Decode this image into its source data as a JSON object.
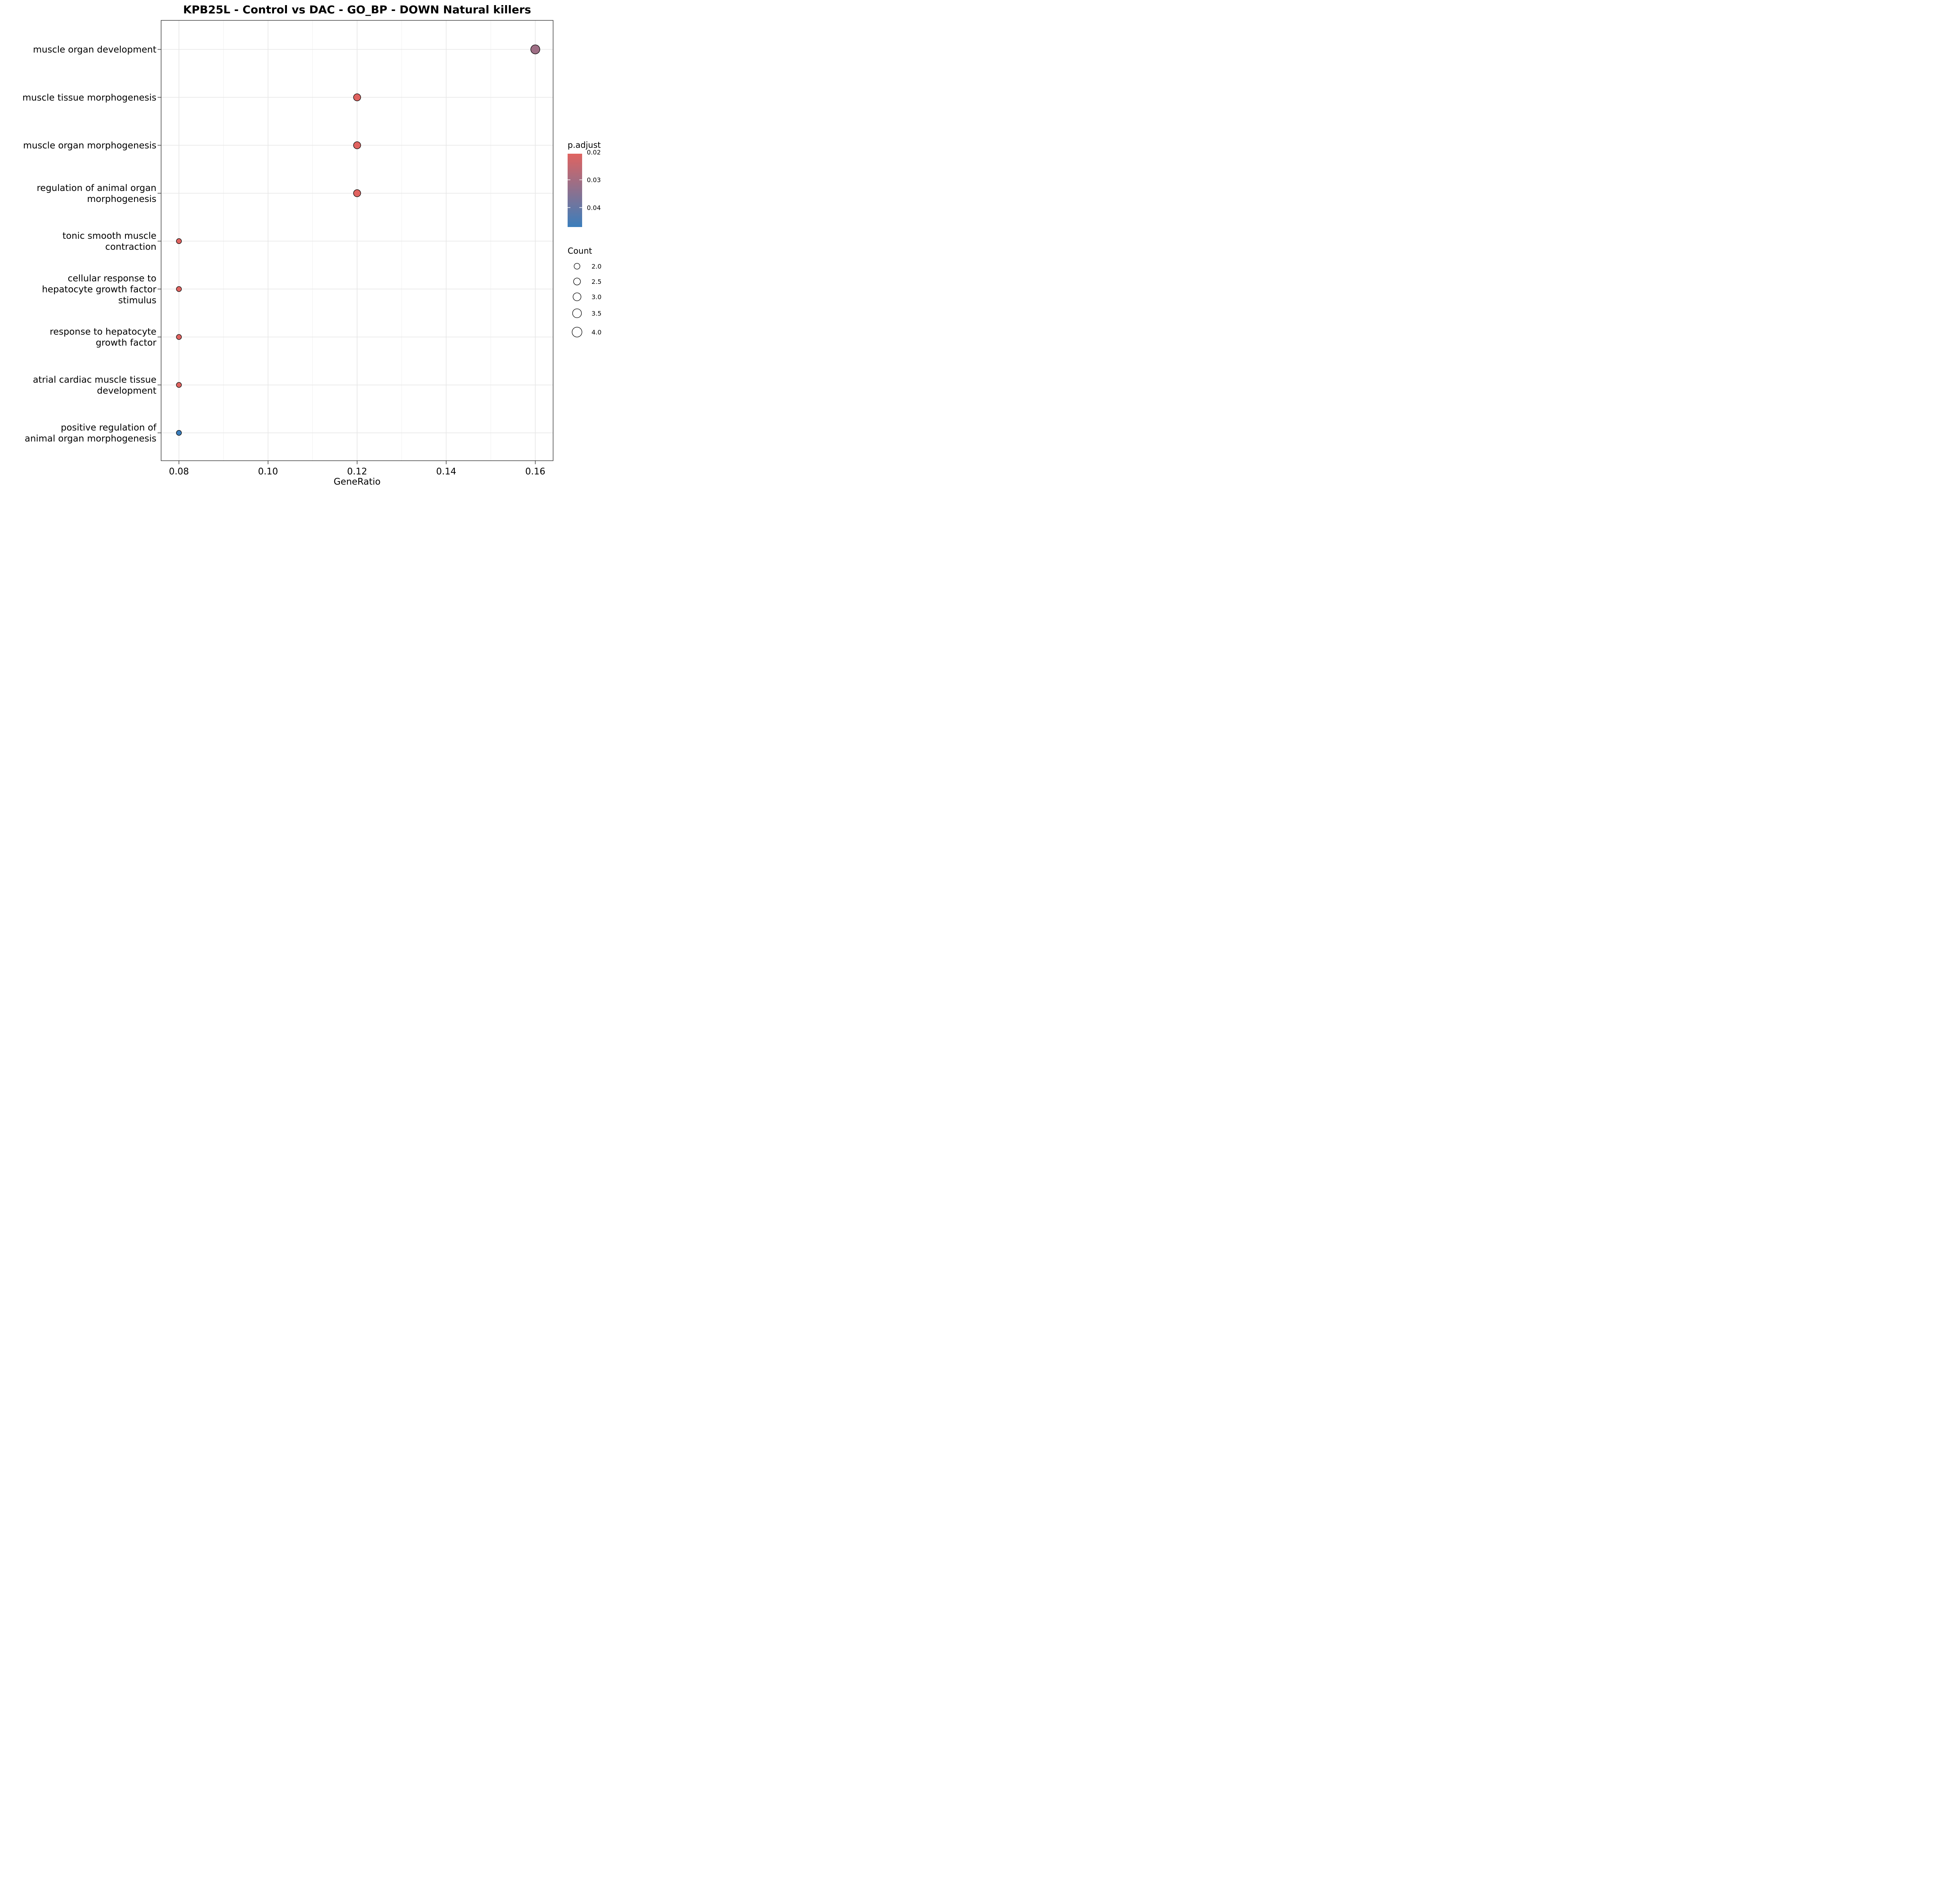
{
  "chart_data": {
    "type": "scatter",
    "title": "KPB25L - Control vs DAC - GO_BP - DOWN Natural killers",
    "xlabel": "GeneRatio",
    "ylabel": "",
    "xlim": [
      0.076,
      0.164
    ],
    "x_ticks": [
      0.08,
      0.1,
      0.12,
      0.14,
      0.16
    ],
    "x_tick_labels": [
      "0.08",
      "0.10",
      "0.12",
      "0.14",
      "0.16"
    ],
    "grid": true,
    "categories": [
      [
        "muscle organ development"
      ],
      [
        "muscle tissue morphogenesis"
      ],
      [
        "muscle organ morphogenesis"
      ],
      [
        "regulation of animal organ",
        "morphogenesis"
      ],
      [
        "tonic smooth muscle",
        "contraction"
      ],
      [
        "cellular response to",
        "hepatocyte growth factor",
        "stimulus"
      ],
      [
        "response to hepatocyte",
        "growth factor"
      ],
      [
        "atrial cardiac muscle tissue",
        "development"
      ],
      [
        "positive regulation of",
        "animal organ morphogenesis"
      ]
    ],
    "points": [
      {
        "x": 0.16,
        "count": 4,
        "p_adjust": 0.0312
      },
      {
        "x": 0.12,
        "count": 3,
        "p_adjust": 0.0206
      },
      {
        "x": 0.12,
        "count": 3,
        "p_adjust": 0.0206
      },
      {
        "x": 0.12,
        "count": 3,
        "p_adjust": 0.0206
      },
      {
        "x": 0.08,
        "count": 2,
        "p_adjust": 0.0206
      },
      {
        "x": 0.08,
        "count": 2,
        "p_adjust": 0.0206
      },
      {
        "x": 0.08,
        "count": 2,
        "p_adjust": 0.0206
      },
      {
        "x": 0.08,
        "count": 2,
        "p_adjust": 0.0206
      },
      {
        "x": 0.08,
        "count": 2,
        "p_adjust": 0.047
      }
    ],
    "color_legend": {
      "title": "p.adjust",
      "range": [
        0.0206,
        0.047
      ],
      "low_color": "#e06360",
      "high_color": "#3b7ebc",
      "ticks": [
        0.02,
        0.03,
        0.04
      ],
      "tick_labels": [
        "0.02",
        "0.03",
        "0.04"
      ]
    },
    "size_legend": {
      "title": "Count",
      "values": [
        2.0,
        2.5,
        3.0,
        3.5,
        4.0
      ],
      "labels": [
        "2.0",
        "2.5",
        "3.0",
        "3.5",
        "4.0"
      ]
    },
    "legend_position": "right"
  }
}
